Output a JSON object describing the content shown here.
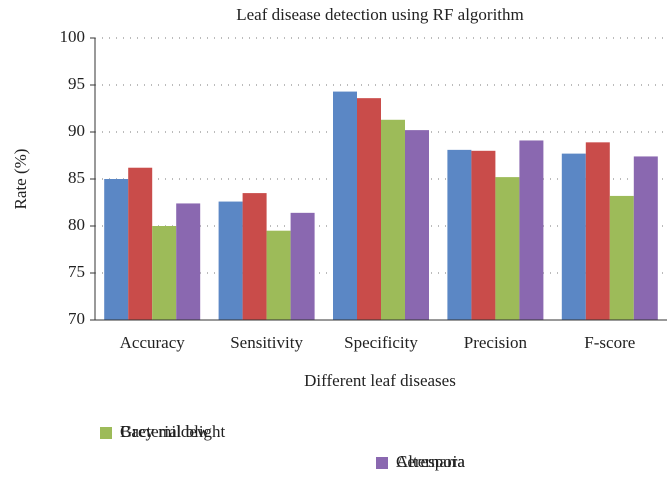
{
  "chart_data": {
    "type": "bar",
    "title": "Leaf disease detection using RF algorithm",
    "x_label": "Different leaf diseases",
    "y_label": "Rate (%)",
    "categories": [
      "Accuracy",
      "Sensitivity",
      "Specificity",
      "Precision",
      "F-score"
    ],
    "series": [
      {
        "name": "Bacterial blight",
        "color": "#5b87c5",
        "values": [
          85.0,
          82.6,
          94.3,
          88.1,
          87.7
        ]
      },
      {
        "name": "Alternaria",
        "color": "#c94c4a",
        "values": [
          86.2,
          83.5,
          93.6,
          88.0,
          88.9
        ]
      },
      {
        "name": "Grey mildew",
        "color": "#9dbb59",
        "values": [
          80.0,
          79.5,
          91.3,
          85.2,
          83.2
        ]
      },
      {
        "name": "Cerespora",
        "color": "#8a68b0",
        "values": [
          82.4,
          81.4,
          90.2,
          89.1,
          87.4
        ]
      }
    ],
    "ylim": [
      70,
      100
    ],
    "yticks": [
      70,
      75,
      80,
      85,
      90,
      95,
      100
    ],
    "grid": true
  }
}
